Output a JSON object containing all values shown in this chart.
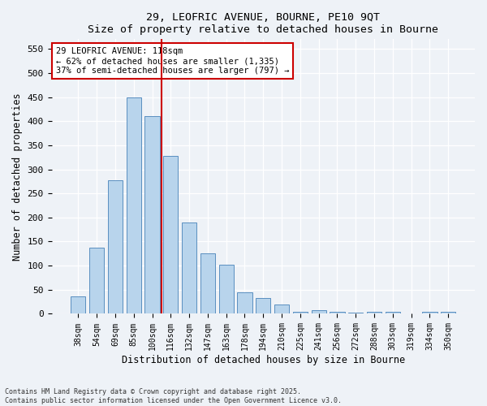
{
  "title1": "29, LEOFRIC AVENUE, BOURNE, PE10 9QT",
  "title2": "Size of property relative to detached houses in Bourne",
  "xlabel": "Distribution of detached houses by size in Bourne",
  "ylabel": "Number of detached properties",
  "categories": [
    "38sqm",
    "54sqm",
    "69sqm",
    "85sqm",
    "100sqm",
    "116sqm",
    "132sqm",
    "147sqm",
    "163sqm",
    "178sqm",
    "194sqm",
    "210sqm",
    "225sqm",
    "241sqm",
    "256sqm",
    "272sqm",
    "288sqm",
    "303sqm",
    "319sqm",
    "334sqm",
    "350sqm"
  ],
  "values": [
    36,
    138,
    278,
    450,
    410,
    327,
    190,
    125,
    102,
    45,
    33,
    19,
    5,
    7,
    5,
    3,
    4,
    4,
    0,
    5,
    5
  ],
  "bar_color": "#b8d4ec",
  "bar_edge_color": "#5a8fc0",
  "bar_width": 0.8,
  "marker_index": 5,
  "marker_label": "29 LEOFRIC AVENUE: 118sqm",
  "annotation_line1": "← 62% of detached houses are smaller (1,335)",
  "annotation_line2": "37% of semi-detached houses are larger (797) →",
  "annotation_box_color": "#ffffff",
  "annotation_border_color": "#cc0000",
  "marker_line_color": "#cc0000",
  "ylim": [
    0,
    570
  ],
  "yticks": [
    0,
    50,
    100,
    150,
    200,
    250,
    300,
    350,
    400,
    450,
    500,
    550
  ],
  "background_color": "#eef2f7",
  "grid_color": "#ffffff",
  "footer": "Contains HM Land Registry data © Crown copyright and database right 2025.\nContains public sector information licensed under the Open Government Licence v3.0."
}
